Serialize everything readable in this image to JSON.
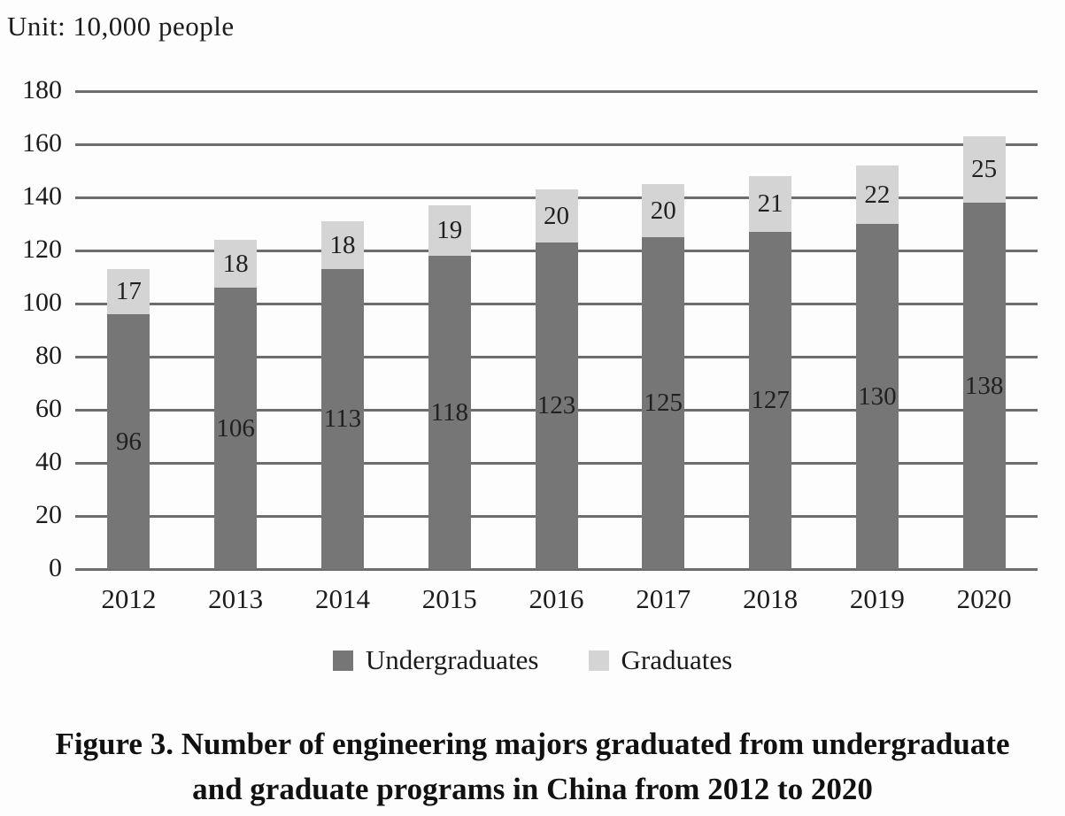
{
  "unit_label": "Unit: 10,000 people",
  "chart_data": {
    "type": "bar",
    "stacked": true,
    "title": "Figure 3. Number of engineering majors graduated from undergraduate and graduate programs in China from 2012 to 2020",
    "unit": "10,000 people",
    "categories": [
      "2012",
      "2013",
      "2014",
      "2015",
      "2016",
      "2017",
      "2018",
      "2019",
      "2020"
    ],
    "series": [
      {
        "name": "Undergraduates",
        "color": "#767676",
        "values": [
          96,
          106,
          113,
          118,
          123,
          125,
          127,
          130,
          138
        ]
      },
      {
        "name": "Graduates",
        "color": "#d4d4d4",
        "values": [
          17,
          18,
          18,
          19,
          20,
          20,
          21,
          22,
          25
        ]
      }
    ],
    "totals": [
      113,
      124,
      131,
      137,
      143,
      145,
      148,
      152,
      163
    ],
    "ylim": [
      0,
      180
    ],
    "yticks": [
      0,
      20,
      40,
      60,
      80,
      100,
      120,
      140,
      160,
      180
    ],
    "grid": true,
    "gridline_color": "#6d6d6d",
    "legend_position": "bottom",
    "data_labels": "centered-in-segment"
  },
  "legend": {
    "items": [
      {
        "label": "Undergraduates",
        "color": "#767676"
      },
      {
        "label": "Graduates",
        "color": "#d4d4d4"
      }
    ]
  },
  "caption": {
    "line1": "Figure 3. Number of engineering majors graduated from undergraduate",
    "line2": "and graduate programs in China from 2012 to 2020"
  }
}
